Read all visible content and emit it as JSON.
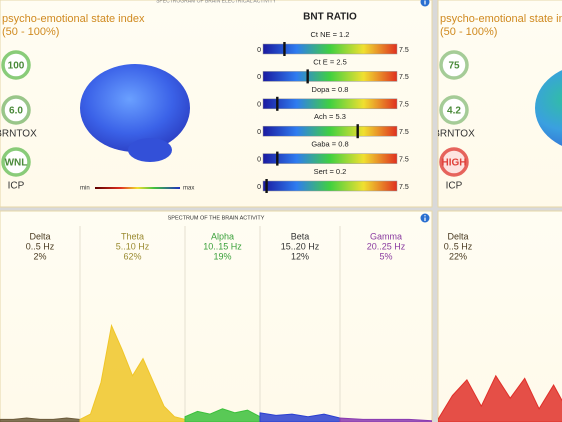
{
  "top_panels": [
    {
      "title": "SPECTROGRAM OF BRAIN ELECTRICAL ACTIVITY",
      "index_label": "psycho-emotional state index",
      "index_range": "(50 - 100%)",
      "gauges": [
        {
          "value": "100",
          "color": "#6cbf5a"
        },
        {
          "value": "6.0",
          "label": "BRNTOX",
          "color": "#7fb86e"
        },
        {
          "value": "WNL",
          "label": "ICP",
          "color": "#6cbf5a"
        }
      ],
      "legend_min": "min",
      "legend_max": "max",
      "ratio_title": "BNT RATIO",
      "scale": [
        0,
        7.5
      ],
      "ratios": [
        {
          "label": "Ct NE = 1.2",
          "value": 1.2
        },
        {
          "label": "Ct E = 2.5",
          "value": 2.5
        },
        {
          "label": "Dopa = 0.8",
          "value": 0.8
        },
        {
          "label": "Ach = 5.3",
          "value": 5.3
        },
        {
          "label": "Gaba = 0.8",
          "value": 0.8
        },
        {
          "label": "Sert = 0.2",
          "value": 0.2
        }
      ]
    },
    {
      "index_label": "psycho-emotional state in",
      "index_range": "(50 - 100%)",
      "gauges": [
        {
          "value": "75",
          "color": "#8fbf80"
        },
        {
          "value": "4.2",
          "label": "BRNTOX",
          "color": "#8fbf80"
        },
        {
          "value": "HIGH",
          "label": "ICP",
          "color": "#e0403a"
        }
      ]
    }
  ],
  "spectrum_panels": [
    {
      "title": "SPECTRUM OF THE BRAIN ACTIVITY",
      "bands": [
        {
          "name": "Delta",
          "range": "0..5 Hz",
          "percent": "2%",
          "label_color": "#4a3a20",
          "color": "#6b5a3a",
          "curve": [
            2,
            2,
            3,
            2,
            2,
            3,
            2
          ]
        },
        {
          "name": "Theta",
          "range": "5..10 Hz",
          "percent": "62%",
          "label_color": "#9a8a30",
          "color": "#f0c628",
          "curve": [
            2,
            6,
            30,
            73,
            55,
            35,
            48,
            30,
            12,
            4,
            2
          ]
        },
        {
          "name": "Alpha",
          "range": "10..15 Hz",
          "percent": "19%",
          "label_color": "#3aa03a",
          "color": "#3cc03c",
          "curve": [
            4,
            8,
            6,
            10,
            7,
            9,
            4
          ]
        },
        {
          "name": "Beta",
          "range": "15..20 Hz",
          "percent": "12%",
          "label_color": "#333333",
          "color": "#2b3fd0",
          "curve": [
            7,
            5,
            6,
            4,
            6,
            3
          ]
        },
        {
          "name": "Gamma",
          "range": "20..25 Hz",
          "percent": "5%",
          "label_color": "#8a3aa0",
          "color": "#8a3ab0",
          "curve": [
            3,
            2,
            2,
            2,
            1
          ]
        }
      ]
    },
    {
      "bands": [
        {
          "name": "Delta",
          "range": "0..5 Hz",
          "percent": "22%",
          "label_color": "#4a3a20",
          "color": "#e0302a",
          "curve": [
            2,
            20,
            32,
            12,
            35,
            18,
            33,
            10,
            28,
            8
          ]
        }
      ]
    }
  ]
}
